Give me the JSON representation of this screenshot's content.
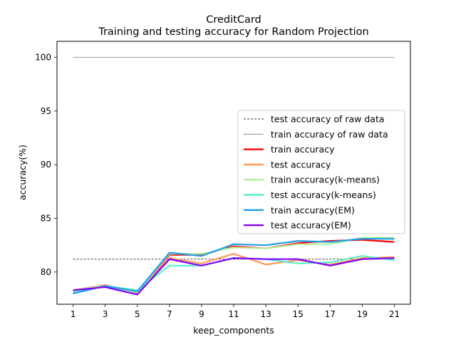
{
  "chart_data": {
    "type": "line",
    "title": [
      "CreditCard",
      "Training and testing accuracy for Random Projection"
    ],
    "xlabel": "keep_components",
    "ylabel": "accuracy(%)",
    "xlim": [
      0,
      22
    ],
    "ylim": [
      77,
      101.5
    ],
    "x": [
      1,
      3,
      5,
      7,
      9,
      11,
      13,
      15,
      17,
      19,
      21
    ],
    "xticks": [
      1,
      3,
      5,
      7,
      9,
      11,
      13,
      15,
      17,
      19,
      21
    ],
    "yticks": [
      80,
      85,
      90,
      95,
      100
    ],
    "grid": false,
    "legend_position": "center-right",
    "reference_lines": [
      {
        "name": "test accuracy of raw data",
        "y": 81.2,
        "color": "#000000",
        "style": "dashed"
      },
      {
        "name": "train accuracy of raw data",
        "y": 100.0,
        "color": "#000000",
        "style": "dotted"
      }
    ],
    "series": [
      {
        "name": "train accuracy",
        "color": "#ff0000",
        "values": [
          78.3,
          78.7,
          78.1,
          81.6,
          81.6,
          82.4,
          82.2,
          82.7,
          82.9,
          83.0,
          82.8
        ]
      },
      {
        "name": "test accuracy",
        "color": "#ff9955",
        "values": [
          78.3,
          78.8,
          78.0,
          81.3,
          80.8,
          81.7,
          80.7,
          81.1,
          80.7,
          81.3,
          81.4
        ]
      },
      {
        "name": "train accuracy(k-means)",
        "color": "#b3f09a",
        "values": [
          78.3,
          78.7,
          78.1,
          81.7,
          81.7,
          82.3,
          82.2,
          82.6,
          82.6,
          83.2,
          83.2
        ]
      },
      {
        "name": "test accuracy(k-means)",
        "color": "#55f0c8",
        "values": [
          78.1,
          78.7,
          78.3,
          80.6,
          80.6,
          81.3,
          81.2,
          80.8,
          80.9,
          81.5,
          81.1
        ]
      },
      {
        "name": "train accuracy(EM)",
        "color": "#1f9eea",
        "values": [
          78.0,
          78.7,
          78.2,
          81.8,
          81.5,
          82.6,
          82.5,
          82.9,
          82.8,
          83.1,
          83.1
        ]
      },
      {
        "name": "test accuracy(EM)",
        "color": "#7f00ff",
        "values": [
          78.3,
          78.6,
          77.9,
          81.2,
          80.6,
          81.3,
          81.2,
          81.2,
          80.6,
          81.2,
          81.3
        ]
      }
    ]
  }
}
